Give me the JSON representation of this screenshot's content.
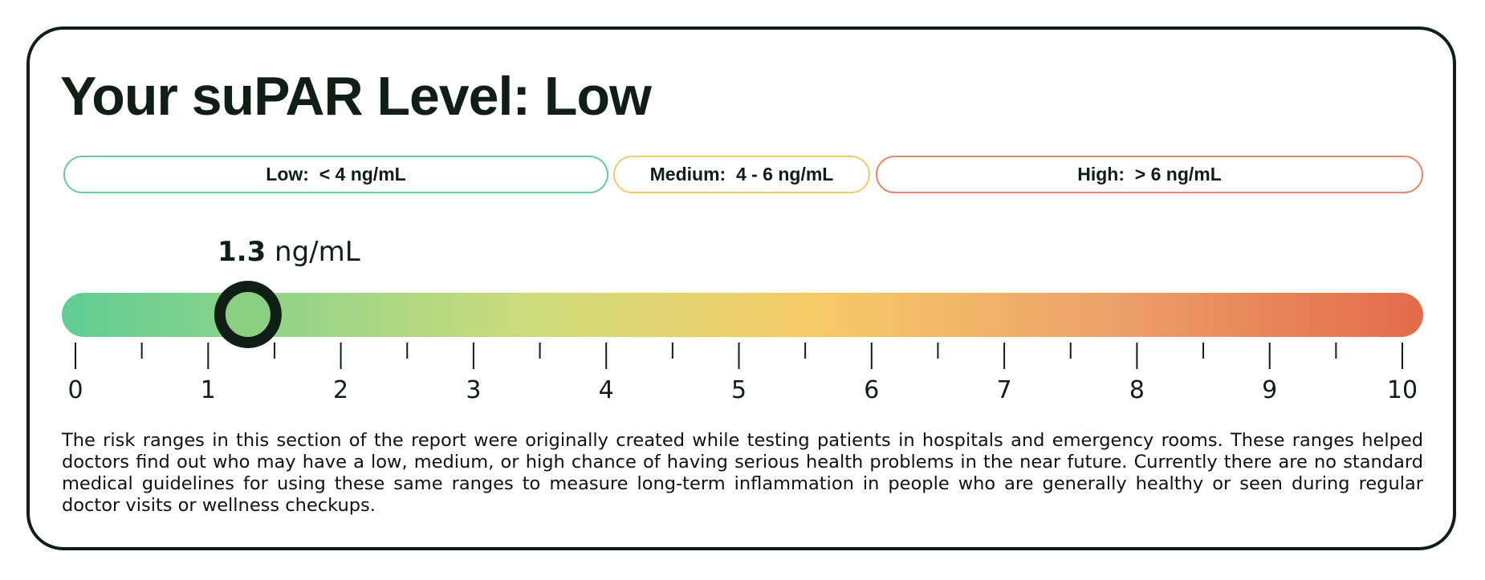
{
  "title": "Your suPAR Level: Low",
  "ranges": [
    {
      "label": "Low:  < 4 ng/mL",
      "color": "#66cc99"
    },
    {
      "label": "Medium:  4 - 6 ng/mL",
      "color": "#f3cc6a"
    },
    {
      "label": "High:  > 6 ng/mL",
      "color": "#e6876a"
    }
  ],
  "reading": {
    "value": 1.3,
    "value_text": "1.3",
    "unit": "ng/mL"
  },
  "scale": {
    "min": 0,
    "max": 10,
    "tick_labels": [
      "0",
      "1",
      "2",
      "3",
      "4",
      "5",
      "6",
      "7",
      "8",
      "9",
      "10"
    ],
    "gradient_colors": [
      "#5fcd94",
      "#cfdc7a",
      "#f6cb68",
      "#ec9f68",
      "#e46a4c"
    ]
  },
  "description": "The risk ranges in this section of the report were originally created while testing patients in hospitals and emergency rooms. These ranges helped doctors find out who may have a low, medium, or high chance of having serious health problems in the near future. Currently there are no standard medical guidelines for using these same ranges to measure long-term inflammation in people who are generally healthy or seen during regular doctor visits or wellness checkups."
}
